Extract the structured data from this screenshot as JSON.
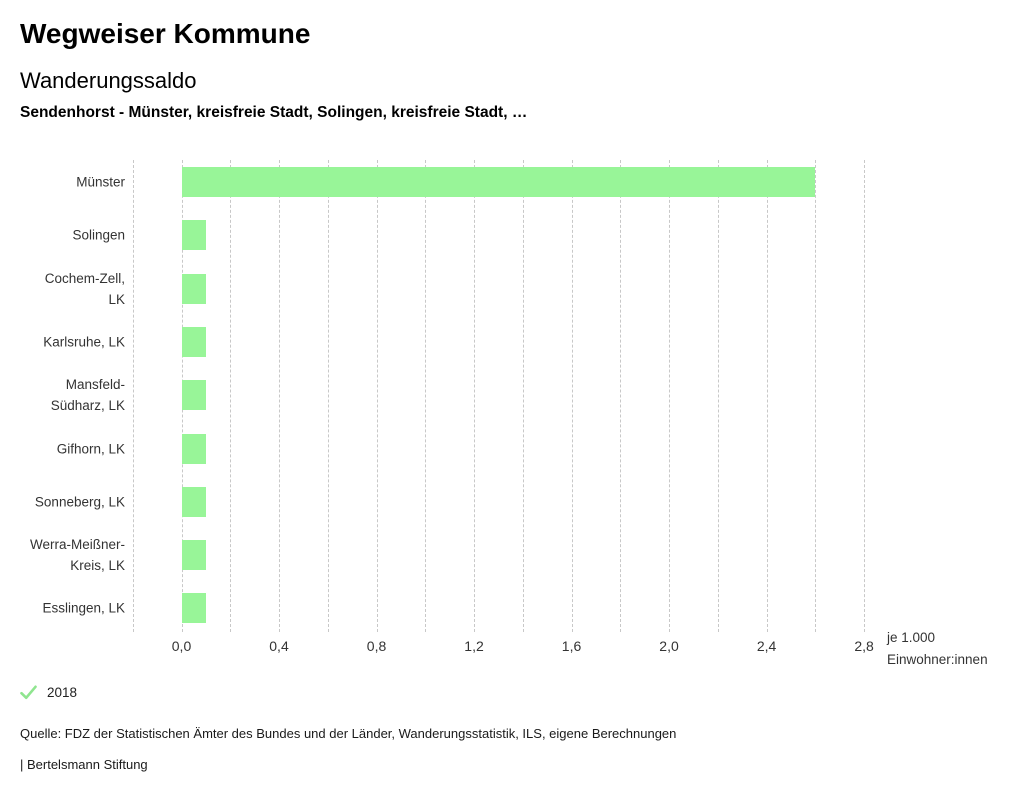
{
  "page": {
    "title": "Wegweiser Kommune",
    "subtitle": "Wanderungssaldo",
    "selection": "Sendenhorst - Münster, kreisfreie Stadt, Solingen, kreisfreie Stadt, …"
  },
  "chart_data": {
    "type": "bar",
    "orientation": "horizontal",
    "title": "Wanderungssaldo",
    "categories": [
      "Münster",
      "Solingen",
      "Cochem-Zell, LK",
      "Karlsruhe, LK",
      "Mansfeld-Südharz, LK",
      "Gifhorn, LK",
      "Sonneberg, LK",
      "Werra-Meißner-Kreis, LK",
      "Esslingen, LK"
    ],
    "category_label_lines": [
      [
        "Münster"
      ],
      [
        "Solingen"
      ],
      [
        "Cochem-Zell,",
        "LK"
      ],
      [
        "Karlsruhe, LK"
      ],
      [
        "Mansfeld-",
        "Südharz, LK"
      ],
      [
        "Gifhorn, LK"
      ],
      [
        "Sonneberg, LK"
      ],
      [
        "Werra-Meißner-",
        "Kreis, LK"
      ],
      [
        "Esslingen, LK"
      ]
    ],
    "series": [
      {
        "name": "2018",
        "values": [
          2.6,
          0.1,
          0.1,
          0.1,
          0.1,
          0.1,
          0.1,
          0.1,
          0.1
        ]
      }
    ],
    "xlabel": "",
    "ylabel": "",
    "xlim": [
      -0.2,
      2.8
    ],
    "x_ticks": [
      0.0,
      0.4,
      0.8,
      1.2,
      1.6,
      2.0,
      2.4,
      2.8
    ],
    "x_tick_labels": [
      "0,0",
      "0,4",
      "0,8",
      "1,2",
      "1,6",
      "2,0",
      "2,4",
      "2,8"
    ],
    "gridline_step": 0.2,
    "grid": "vertical-dotted",
    "legend_position": "bottom-left",
    "unit_label_lines": [
      "je 1.000",
      "Einwohner:innen"
    ],
    "bar_color": "#98f598",
    "gridline_color": "#c8c8c8"
  },
  "legend": {
    "check_icon": "checkmark",
    "year": "2018",
    "check_color": "#8fe58f"
  },
  "footer": {
    "source": "Quelle: FDZ der Statistischen Ämter des Bundes und der Länder, Wanderungsstatistik, ILS, eigene Berechnungen",
    "attribution": "| Bertelsmann Stiftung"
  }
}
